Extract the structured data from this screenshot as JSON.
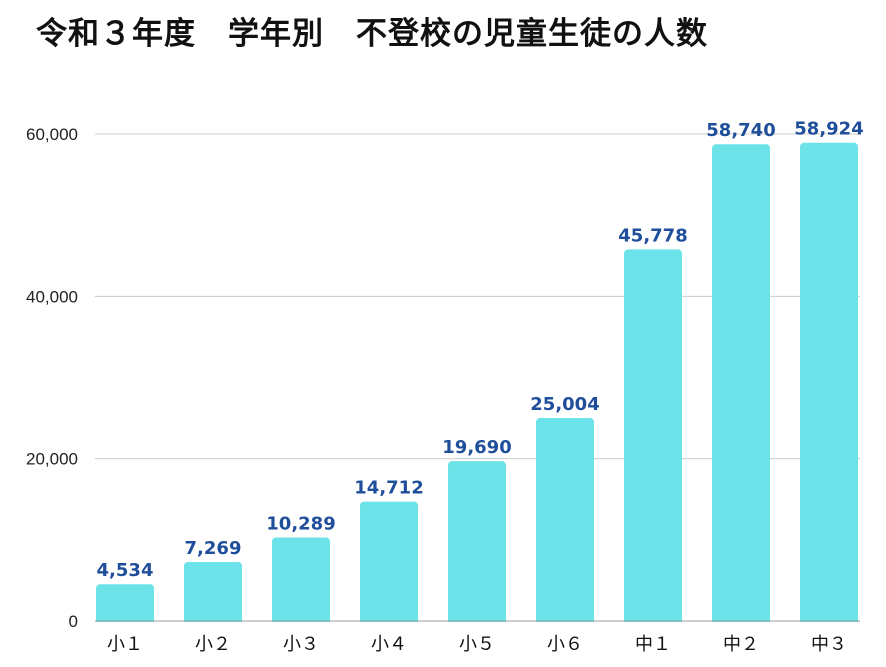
{
  "chart_data": {
    "type": "bar",
    "title": "令和３年度　学年別　不登校の児童生徒の人数",
    "categories": [
      "小１",
      "小２",
      "小３",
      "小４",
      "小５",
      "小６",
      "中１",
      "中２",
      "中３"
    ],
    "values": [
      4534,
      7269,
      10289,
      14712,
      19690,
      25004,
      45778,
      58740,
      58924
    ],
    "value_labels": [
      "4,534",
      "7,269",
      "10,289",
      "14,712",
      "19,690",
      "25,004",
      "45,778",
      "58,740",
      "58,924"
    ],
    "y_ticks": [
      0,
      20000,
      40000,
      60000
    ],
    "y_tick_labels": [
      "0",
      "20,000",
      "40,000",
      "60,000"
    ],
    "ylim": [
      0,
      60000
    ],
    "xlabel": "",
    "ylabel": "",
    "grid": true,
    "legend": "none",
    "colors": {
      "bar": "#6ce3e8",
      "data_label": "#1f4e9a",
      "grid": "#cccccc",
      "text": "#111111"
    }
  }
}
